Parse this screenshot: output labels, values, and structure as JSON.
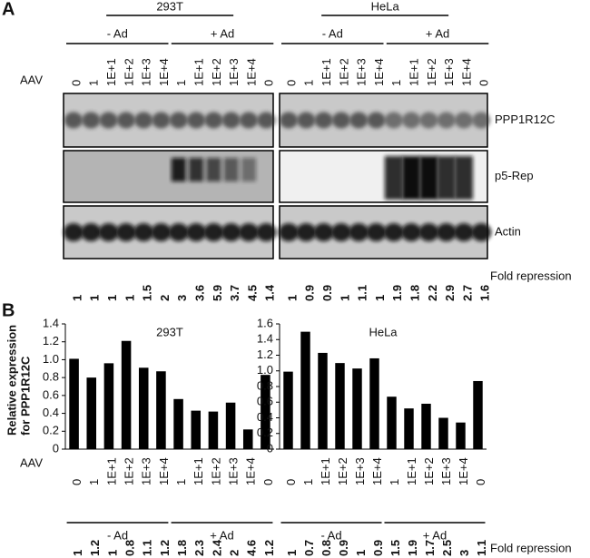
{
  "panel_a": {
    "label": "A",
    "aav_label": "AAV",
    "fold_label": "Fold repression",
    "blots": [
      "PPP1R12C",
      "p5-Rep",
      "Actin"
    ],
    "cell_lines": [
      {
        "name": "293T",
        "groups": [
          "- Ad",
          "+ Ad"
        ],
        "aav": [
          "0",
          "1",
          "1E+1",
          "1E+2",
          "1E+3",
          "1E+4",
          "1",
          "1E+1",
          "1E+2",
          "1E+3",
          "1E+4",
          "0"
        ],
        "fold_repression": [
          1,
          1,
          1,
          1,
          1.5,
          2,
          3,
          3.6,
          5.9,
          3.7,
          4.5,
          1.4
        ]
      },
      {
        "name": "HeLa",
        "groups": [
          "- Ad",
          "+ Ad"
        ],
        "aav": [
          "0",
          "1",
          "1E+1",
          "1E+2",
          "1E+3",
          "1E+4",
          "1",
          "1E+1",
          "1E+2",
          "1E+3",
          "1E+4",
          "0"
        ],
        "fold_repression": [
          1,
          0.9,
          0.9,
          1,
          1.1,
          1,
          1.9,
          1.8,
          2.2,
          2.9,
          2.7,
          1.6
        ]
      }
    ]
  },
  "panel_b": {
    "label": "B",
    "y_label": [
      "Relative expression",
      "for PPP1R12C"
    ],
    "aav_label": "AAV",
    "fold_label": "Fold repression"
  },
  "chart_data": [
    {
      "type": "bar",
      "title": "293T",
      "color": "#000000",
      "categories": [
        "0",
        "1",
        "1E+1",
        "1E+2",
        "1E+3",
        "1E+4",
        "1",
        "1E+1",
        "1E+2",
        "1E+3",
        "1E+4",
        "0"
      ],
      "values": [
        1.01,
        0.8,
        0.96,
        1.21,
        0.91,
        0.87,
        0.56,
        0.43,
        0.42,
        0.52,
        0.22,
        0.83
      ],
      "groups": [
        "- Ad",
        "+ Ad"
      ],
      "fold_repression": [
        1,
        1.2,
        1,
        0.8,
        1.1,
        1.2,
        1.8,
        2.3,
        2.4,
        2,
        4.6,
        1.2
      ],
      "ylim": [
        0,
        1.4
      ],
      "yticks": [
        0,
        0.2,
        0.4,
        0.6,
        0.8,
        {
          "value": 1,
          "label": "1.0"
        },
        1.2,
        1.4
      ]
    },
    {
      "type": "bar",
      "title": "HeLa",
      "color": "#000000",
      "categories": [
        "0",
        "1",
        "1E+1",
        "1E+2",
        "1E+3",
        "1E+4",
        "1",
        "1E+1",
        "1E+2",
        "1E+3",
        "1E+4",
        "0"
      ],
      "values": [
        0.99,
        1.5,
        1.23,
        1.1,
        1.03,
        1.16,
        0.67,
        0.52,
        0.58,
        0.4,
        0.34,
        0.87
      ],
      "groups": [
        "- Ad",
        "+ Ad"
      ],
      "fold_repression": [
        1,
        0.7,
        0.8,
        0.9,
        1,
        0.9,
        1.5,
        1.9,
        1.7,
        2.5,
        3,
        1.1
      ],
      "ylim": [
        0,
        1.6
      ],
      "yticks": [
        0,
        0.2,
        0.4,
        0.6,
        0.8,
        {
          "value": 1,
          "label": "1.0"
        },
        1.2,
        1.4,
        1.6
      ]
    }
  ]
}
